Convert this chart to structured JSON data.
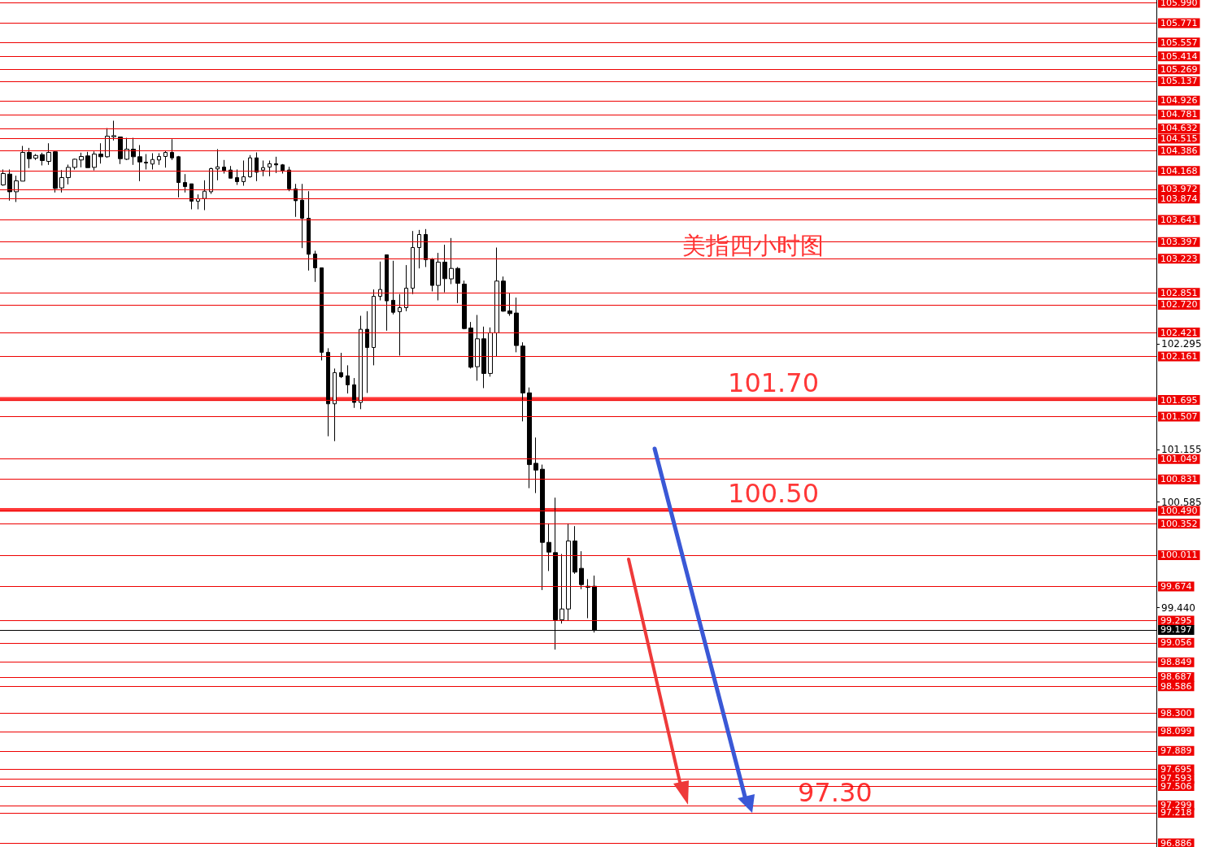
{
  "chart_data": {
    "type": "candlestick",
    "title": "美指四小时图",
    "categories": [
      null,
      null,
      null,
      null,
      null,
      null,
      null,
      null,
      null,
      null,
      null,
      null,
      null,
      null,
      null,
      null,
      null,
      null,
      null,
      null,
      null,
      null,
      null,
      null,
      null,
      null,
      null,
      null,
      null,
      null,
      null,
      null,
      null,
      null,
      null,
      null,
      null,
      null,
      null,
      null,
      null,
      null,
      null,
      null,
      null,
      null,
      null,
      null,
      null,
      null,
      null,
      null,
      null,
      null,
      null,
      null,
      null,
      null,
      null,
      null,
      null,
      null,
      null,
      null,
      null,
      null,
      null,
      null,
      null,
      null,
      null,
      null,
      null,
      null,
      null,
      null,
      null,
      null,
      null,
      null,
      null,
      null,
      null,
      null,
      null,
      null,
      null,
      null,
      null,
      null,
      null,
      null,
      null,
      null,
      null,
      null,
      null,
      null,
      null,
      null,
      null,
      null,
      null,
      null,
      null,
      null,
      null,
      null,
      null,
      null,
      null,
      null,
      null,
      null,
      null,
      null,
      null,
      null,
      null,
      null,
      null,
      null,
      null,
      null,
      null,
      null,
      null,
      null,
      null,
      null,
      null,
      null,
      null,
      null,
      null,
      null,
      null,
      null,
      null,
      null,
      null,
      null,
      null,
      null,
      null,
      null,
      null,
      null,
      null,
      null,
      null,
      null,
      null,
      null,
      null,
      null,
      null,
      null,
      null,
      null,
      null,
      null,
      null,
      null,
      null,
      null,
      null,
      null,
      null,
      null,
      null,
      null,
      null,
      null,
      null,
      null,
      null,
      null
    ],
    "ohlc": [
      [
        104.018,
        104.185,
        104.009,
        104.141
      ],
      [
        104.135,
        104.185,
        103.848,
        103.944
      ],
      [
        103.944,
        104.118,
        103.833,
        104.062
      ],
      [
        104.059,
        104.44,
        104.059,
        104.37
      ],
      [
        104.37,
        104.419,
        104.2,
        104.302
      ],
      [
        104.308,
        104.352,
        104.288,
        104.337
      ],
      [
        104.346,
        104.367,
        104.229,
        104.282
      ],
      [
        104.273,
        104.469,
        104.235,
        104.37
      ],
      [
        104.376,
        104.381,
        103.936,
        103.98
      ],
      [
        103.986,
        104.179,
        103.936,
        104.097
      ],
      [
        104.097,
        104.238,
        104.024,
        104.208
      ],
      [
        104.208,
        104.302,
        104.185,
        104.296
      ],
      [
        104.288,
        104.367,
        104.208,
        104.326
      ],
      [
        104.332,
        104.376,
        104.205,
        104.205
      ],
      [
        104.208,
        104.381,
        104.176,
        104.352
      ],
      [
        104.352,
        104.469,
        104.249,
        104.323
      ],
      [
        104.323,
        104.633,
        104.311,
        104.546
      ],
      [
        104.54,
        104.713,
        104.499,
        104.551
      ],
      [
        104.537,
        104.537,
        104.244,
        104.302
      ],
      [
        104.296,
        104.528,
        104.288,
        104.405
      ],
      [
        104.405,
        104.528,
        104.235,
        104.323
      ],
      [
        104.323,
        104.449,
        104.059,
        104.267
      ],
      [
        104.264,
        104.352,
        104.185,
        104.255
      ],
      [
        104.244,
        104.361,
        104.185,
        104.293
      ],
      [
        104.288,
        104.361,
        104.235,
        104.326
      ],
      [
        104.326,
        104.39,
        104.205,
        104.37
      ],
      [
        104.37,
        104.513,
        104.288,
        104.311
      ],
      [
        104.323,
        104.332,
        103.883,
        104.044
      ],
      [
        104.044,
        104.135,
        103.936,
        104.0
      ],
      [
        104.03,
        104.03,
        103.754,
        103.842
      ],
      [
        103.842,
        103.915,
        103.754,
        103.868
      ],
      [
        103.871,
        104.068,
        103.745,
        103.95
      ],
      [
        103.944,
        104.205,
        103.921,
        104.194
      ],
      [
        104.191,
        104.405,
        104.068,
        104.214
      ],
      [
        104.211,
        104.288,
        104.141,
        104.176
      ],
      [
        104.179,
        104.223,
        104.091,
        104.091
      ],
      [
        104.097,
        104.185,
        104.018,
        104.053
      ],
      [
        104.053,
        104.282,
        104.009,
        104.106
      ],
      [
        104.106,
        104.341,
        104.097,
        104.311
      ],
      [
        104.311,
        104.37,
        104.059,
        104.156
      ],
      [
        104.179,
        104.282,
        104.112,
        104.205
      ],
      [
        104.211,
        104.282,
        104.112,
        104.247
      ],
      [
        104.247,
        104.323,
        104.147,
        104.235
      ],
      [
        104.235,
        104.244,
        104.141,
        104.176
      ],
      [
        104.179,
        104.214,
        103.95,
        103.976
      ],
      [
        103.974,
        104.029,
        103.672,
        103.847
      ],
      [
        103.853,
        104.029,
        103.334,
        103.657
      ],
      [
        103.657,
        103.95,
        103.091,
        103.267
      ],
      [
        103.27,
        103.305,
        102.968,
        103.12
      ],
      [
        103.12,
        103.12,
        102.118,
        102.206
      ],
      [
        102.206,
        102.25,
        101.297,
        101.648
      ],
      [
        101.648,
        102.03,
        101.244,
        101.986
      ],
      [
        101.986,
        102.2,
        101.927,
        101.942
      ],
      [
        101.951,
        102.065,
        101.76,
        101.854
      ],
      [
        101.854,
        101.927,
        101.604,
        101.663
      ],
      [
        101.663,
        102.601,
        101.59,
        102.455
      ],
      [
        102.455,
        102.651,
        101.766,
        102.258
      ],
      [
        102.258,
        102.886,
        102.065,
        102.812
      ],
      [
        102.812,
        103.188,
        102.768,
        102.886
      ],
      [
        103.261,
        103.261,
        102.44,
        102.763
      ],
      [
        102.769,
        103.197,
        102.616,
        102.639
      ],
      [
        102.645,
        102.836,
        102.17,
        102.689
      ],
      [
        102.689,
        103.15,
        102.651,
        102.9
      ],
      [
        102.9,
        103.519,
        102.836,
        103.34
      ],
      [
        103.34,
        103.531,
        103.114,
        103.481
      ],
      [
        103.481,
        103.54,
        103.129,
        103.208
      ],
      [
        103.211,
        103.226,
        102.865,
        102.93
      ],
      [
        102.93,
        103.282,
        102.768,
        103.182
      ],
      [
        103.182,
        103.37,
        102.856,
        103.003
      ],
      [
        103.001,
        103.443,
        102.944,
        103.114
      ],
      [
        103.114,
        103.129,
        102.739,
        102.953
      ],
      [
        102.944,
        102.982,
        102.455,
        102.463
      ],
      [
        102.469,
        102.534,
        102.03,
        102.044
      ],
      [
        102.05,
        102.61,
        101.898,
        102.352
      ],
      [
        102.352,
        102.484,
        101.818,
        101.977
      ],
      [
        101.977,
        102.475,
        101.942,
        102.417
      ],
      [
        102.417,
        103.34,
        102.162,
        102.977
      ],
      [
        102.977,
        103.026,
        102.645,
        102.651
      ],
      [
        102.654,
        102.842,
        102.601,
        102.625
      ],
      [
        102.631,
        102.798,
        102.206,
        102.279
      ],
      [
        102.273,
        102.314,
        101.458,
        101.766
      ],
      [
        101.767,
        101.825,
        100.735,
        100.99
      ],
      [
        101.004,
        101.283,
        100.682,
        100.931
      ],
      [
        100.94,
        100.99,
        99.632,
        100.148
      ],
      [
        100.148,
        100.354,
        99.838,
        100.043
      ],
      [
        100.037,
        100.632,
        98.987,
        99.31
      ],
      [
        99.31,
        100.022,
        99.269,
        99.427
      ],
      [
        99.427,
        100.354,
        99.298,
        100.163
      ],
      [
        100.163,
        100.324,
        99.808,
        99.826
      ],
      [
        99.867,
        100.052,
        99.641,
        99.691
      ],
      [
        99.673,
        99.75,
        99.327,
        99.662
      ],
      [
        99.673,
        99.788,
        99.172,
        99.197
      ],
      null,
      null,
      null,
      null,
      null,
      null,
      null,
      null,
      null,
      null,
      null,
      null,
      null,
      null,
      null,
      null,
      null,
      null,
      null,
      null,
      null,
      null,
      null,
      null,
      null,
      null,
      null,
      null,
      null,
      null,
      null,
      null,
      null,
      null,
      null,
      null,
      null,
      null,
      null,
      null,
      null,
      null,
      null,
      null,
      null,
      null,
      null,
      null,
      null,
      null,
      null,
      null,
      null,
      null,
      null,
      null,
      null,
      null,
      null,
      null,
      null,
      null,
      null,
      null,
      null,
      null,
      null,
      null,
      null,
      null,
      null,
      null,
      null,
      null,
      null,
      null,
      null,
      null,
      null,
      null,
      null,
      null,
      null,
      null,
      null,
      null
    ],
    "ylim": [
      96.85,
      106.02
    ],
    "yticks": [
      102.295,
      101.155,
      100.585,
      {
        "value": 99.44,
        "label": "99.440"
      }
    ],
    "tick_labels": "y",
    "ref_lines": [
      {
        "axis": "y",
        "value": 105.99,
        "label": "105.990",
        "color": "#ee0000"
      },
      {
        "axis": "y",
        "value": 105.771,
        "label": "105.771",
        "color": "#ee0000"
      },
      {
        "axis": "y",
        "value": 105.557,
        "label": "105.557",
        "color": "#ee0000"
      },
      {
        "axis": "y",
        "value": 105.414,
        "label": "105.414",
        "color": "#ee0000"
      },
      {
        "axis": "y",
        "value": 105.269,
        "label": "105.269",
        "color": "#ee0000"
      },
      {
        "axis": "y",
        "value": 105.137,
        "label": "105.137",
        "color": "#ee0000"
      },
      {
        "axis": "y",
        "value": 104.926,
        "label": "104.926",
        "color": "#ee0000"
      },
      {
        "axis": "y",
        "value": 104.781,
        "label": "104.781",
        "color": "#ee0000"
      },
      {
        "axis": "y",
        "value": 104.632,
        "label": "104.632",
        "color": "#ee0000"
      },
      {
        "axis": "y",
        "value": 104.515,
        "label": "104.515",
        "color": "#ee0000"
      },
      {
        "axis": "y",
        "value": 104.386,
        "label": "104.386",
        "color": "#ee0000"
      },
      {
        "axis": "y",
        "value": 104.168,
        "label": "104.168",
        "color": "#ee0000"
      },
      {
        "axis": "y",
        "value": 103.972,
        "label": "103.972",
        "color": "#ee0000"
      },
      {
        "axis": "y",
        "value": 103.874,
        "label": "103.874",
        "color": "#ee0000"
      },
      {
        "axis": "y",
        "value": 103.641,
        "label": "103.641",
        "color": "#ee0000"
      },
      {
        "axis": "y",
        "value": 103.397,
        "label": "103.397",
        "color": "#ee0000"
      },
      {
        "axis": "y",
        "value": 103.223,
        "label": "103.223",
        "color": "#ee0000"
      },
      {
        "axis": "y",
        "value": 102.851,
        "label": "102.851",
        "color": "#ee0000"
      },
      {
        "axis": "y",
        "value": 102.72,
        "label": "102.720",
        "color": "#ee0000"
      },
      {
        "axis": "y",
        "value": 102.421,
        "label": "102.421",
        "color": "#ee0000"
      },
      {
        "axis": "y",
        "value": 102.161,
        "label": "102.161",
        "color": "#ee0000"
      },
      {
        "axis": "y",
        "value": 101.695,
        "label": "101.695",
        "color": "#ee0000"
      },
      {
        "axis": "y",
        "value": 101.507,
        "label": "101.507",
        "color": "#ee0000"
      },
      {
        "axis": "y",
        "value": 101.049,
        "label": "101.049",
        "color": "#ee0000"
      },
      {
        "axis": "y",
        "value": 100.831,
        "label": "100.831",
        "color": "#ee0000"
      },
      {
        "axis": "y",
        "value": 100.49,
        "label": "100.490",
        "color": "#ee0000"
      },
      {
        "axis": "y",
        "value": 100.352,
        "label": "100.352",
        "color": "#ee0000"
      },
      {
        "axis": "y",
        "value": 100.011,
        "label": "100.011",
        "color": "#ee0000"
      },
      {
        "axis": "y",
        "value": 99.674,
        "label": "99.674",
        "color": "#ee0000"
      },
      {
        "axis": "y",
        "value": 99.295,
        "label": "99.295",
        "color": "#ee0000"
      },
      {
        "axis": "y",
        "value": 99.197,
        "label": "99.197",
        "color": "#000000"
      },
      {
        "axis": "y",
        "value": 99.056,
        "label": "99.056",
        "color": "#ee0000"
      },
      {
        "axis": "y",
        "value": 98.849,
        "label": "98.849",
        "color": "#ee0000"
      },
      {
        "axis": "y",
        "value": 98.687,
        "label": "98.687",
        "color": "#ee0000"
      },
      {
        "axis": "y",
        "value": 98.586,
        "label": "98.586",
        "color": "#ee0000"
      },
      {
        "axis": "y",
        "value": 98.3,
        "label": "98.300",
        "color": "#ee0000"
      },
      {
        "axis": "y",
        "value": 98.099,
        "label": "98.099",
        "color": "#ee0000"
      },
      {
        "axis": "y",
        "value": 97.889,
        "label": "97.889",
        "color": "#ee0000"
      },
      {
        "axis": "y",
        "value": 97.695,
        "label": "97.695",
        "color": "#ee0000"
      },
      {
        "axis": "y",
        "value": 97.593,
        "label": "97.593",
        "color": "#ee0000"
      },
      {
        "axis": "y",
        "value": 97.506,
        "label": "97.506",
        "color": "#ee0000"
      },
      {
        "axis": "y",
        "value": 97.299,
        "label": "97.299",
        "color": "#ee0000"
      },
      {
        "axis": "y",
        "value": 97.218,
        "label": "97.218",
        "color": "#ee0000"
      },
      {
        "axis": "y",
        "value": 96.886,
        "label": "96.886",
        "color": "#ee0000"
      }
    ],
    "bands": [
      {
        "axis": "y",
        "from": 101.68,
        "to": 101.72,
        "label": "101.70",
        "color": "#ff3838"
      },
      {
        "axis": "y",
        "from": 100.48,
        "to": 100.52,
        "label": "100.50",
        "color": "#ff3838"
      }
    ],
    "annotations": [
      {
        "text": "97.30",
        "y": 97.3
      }
    ]
  }
}
